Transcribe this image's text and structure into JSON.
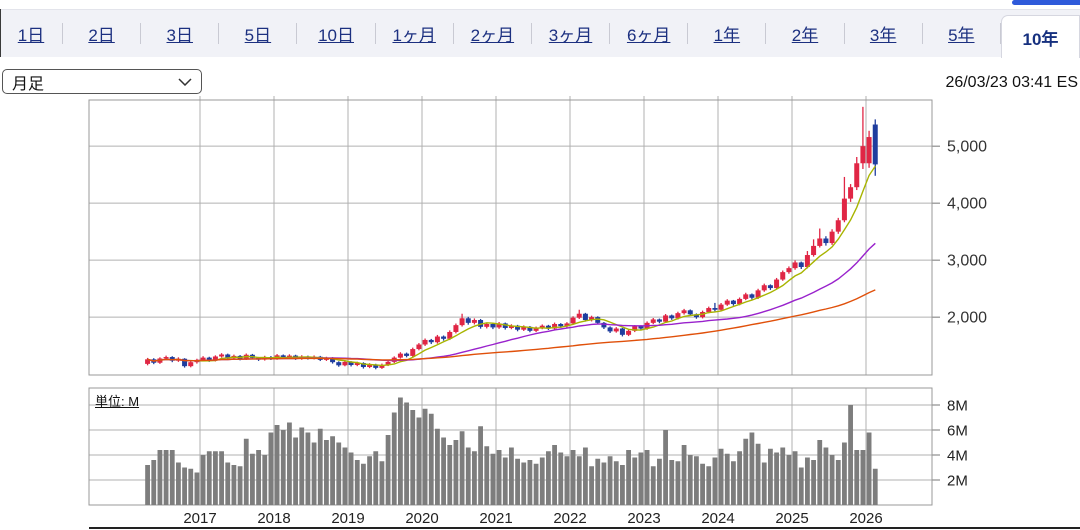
{
  "tabs": {
    "items": [
      {
        "id": "1d",
        "label": "1日"
      },
      {
        "id": "2d",
        "label": "2日"
      },
      {
        "id": "3d",
        "label": "3日"
      },
      {
        "id": "5d",
        "label": "5日"
      },
      {
        "id": "10d",
        "label": "10日"
      },
      {
        "id": "1mo",
        "label": "1ヶ月"
      },
      {
        "id": "2mo",
        "label": "2ヶ月"
      },
      {
        "id": "3mo",
        "label": "3ヶ月"
      },
      {
        "id": "6mo",
        "label": "6ヶ月"
      },
      {
        "id": "1y",
        "label": "1年"
      },
      {
        "id": "2y",
        "label": "2年"
      },
      {
        "id": "3y",
        "label": "3年"
      },
      {
        "id": "5y",
        "label": "5年"
      },
      {
        "id": "10y",
        "label": "10年"
      }
    ],
    "selected_id": "10y"
  },
  "controls": {
    "interval_value": "月足",
    "timestamp": "26/03/23 03:41 ES"
  },
  "chart_data": {
    "type": "candlestick_with_volume",
    "interval": "month",
    "start_month": "2016-04",
    "unit_label": "単位: M",
    "x_year_labels": [
      "2017",
      "2018",
      "2019",
      "2020",
      "2021",
      "2022",
      "2023",
      "2024",
      "2025",
      "2026"
    ],
    "price_axis": {
      "ticks": [
        2000,
        3000,
        4000,
        5000
      ],
      "tick_labels": [
        "2,000",
        "3,000",
        "4,000",
        "5,000"
      ],
      "range": [
        985,
        5810
      ]
    },
    "volume_axis": {
      "ticks": [
        2,
        4,
        6,
        8
      ],
      "tick_labels": [
        "2M",
        "4M",
        "6M",
        "8M"
      ],
      "range": [
        0,
        9.36
      ]
    },
    "ma_periods": [
      6,
      24,
      60
    ],
    "ma_colors": {
      "short": "#a8b400",
      "mid": "#9922cc",
      "long": "#e0500a"
    },
    "candle_colors": {
      "up": "#e02645",
      "down": "#1f3d9e"
    },
    "volume_color": "#7d7d7d",
    "grid_color": "#b0b0b0",
    "border_color": "#999999",
    "ohlcv": [
      [
        1180,
        1285,
        1155,
        1260,
        3.2
      ],
      [
        1260,
        1280,
        1175,
        1200,
        3.6
      ],
      [
        1200,
        1295,
        1180,
        1275,
        4.4
      ],
      [
        1275,
        1325,
        1255,
        1300,
        4.4
      ],
      [
        1300,
        1315,
        1210,
        1235,
        4.4
      ],
      [
        1235,
        1295,
        1215,
        1270,
        3.4
      ],
      [
        1270,
        1280,
        1115,
        1140,
        3.0
      ],
      [
        1140,
        1235,
        1120,
        1210,
        2.9
      ],
      [
        1210,
        1270,
        1185,
        1250,
        2.6
      ],
      [
        1250,
        1315,
        1230,
        1290,
        4.0
      ],
      [
        1290,
        1305,
        1215,
        1240,
        4.3
      ],
      [
        1240,
        1330,
        1222,
        1310,
        4.3
      ],
      [
        1310,
        1368,
        1290,
        1345,
        4.3
      ],
      [
        1345,
        1360,
        1258,
        1280,
        3.4
      ],
      [
        1280,
        1342,
        1262,
        1320,
        3.2
      ],
      [
        1320,
        1335,
        1242,
        1265,
        3.1
      ],
      [
        1265,
        1362,
        1248,
        1340,
        5.3
      ],
      [
        1340,
        1355,
        1262,
        1285,
        4.1
      ],
      [
        1285,
        1302,
        1232,
        1255,
        4.4
      ],
      [
        1255,
        1322,
        1238,
        1300,
        4.0
      ],
      [
        1300,
        1318,
        1248,
        1270,
        5.8
      ],
      [
        1270,
        1352,
        1252,
        1330,
        6.4
      ],
      [
        1330,
        1345,
        1265,
        1290,
        6.0
      ],
      [
        1290,
        1348,
        1272,
        1325,
        6.6
      ],
      [
        1325,
        1340,
        1250,
        1270,
        5.4
      ],
      [
        1270,
        1332,
        1252,
        1310,
        6.2
      ],
      [
        1310,
        1325,
        1255,
        1275,
        5.8
      ],
      [
        1275,
        1328,
        1258,
        1305,
        5.0
      ],
      [
        1305,
        1320,
        1230,
        1250,
        6.1
      ],
      [
        1250,
        1305,
        1232,
        1285,
        5.2
      ],
      [
        1285,
        1298,
        1185,
        1210,
        5.5
      ],
      [
        1210,
        1225,
        1130,
        1155,
        5.0
      ],
      [
        1155,
        1238,
        1138,
        1215,
        4.6
      ],
      [
        1215,
        1228,
        1135,
        1160,
        4.2
      ],
      [
        1160,
        1218,
        1140,
        1195,
        3.6
      ],
      [
        1195,
        1208,
        1098,
        1125,
        3.3
      ],
      [
        1125,
        1192,
        1105,
        1170,
        3.9
      ],
      [
        1170,
        1182,
        1085,
        1110,
        4.3
      ],
      [
        1110,
        1185,
        1092,
        1160,
        3.5
      ],
      [
        1160,
        1240,
        1142,
        1215,
        5.6
      ],
      [
        1215,
        1312,
        1195,
        1290,
        7.4
      ],
      [
        1290,
        1385,
        1272,
        1360,
        8.6
      ],
      [
        1360,
        1378,
        1295,
        1320,
        8.2
      ],
      [
        1320,
        1465,
        1302,
        1440,
        7.6
      ],
      [
        1440,
        1545,
        1418,
        1520,
        7.0
      ],
      [
        1520,
        1625,
        1495,
        1600,
        7.7
      ],
      [
        1600,
        1618,
        1528,
        1560,
        7.3
      ],
      [
        1560,
        1688,
        1535,
        1660,
        6.1
      ],
      [
        1660,
        1678,
        1588,
        1620,
        5.4
      ],
      [
        1620,
        1768,
        1598,
        1740,
        4.8
      ],
      [
        1740,
        1888,
        1715,
        1860,
        5.2
      ],
      [
        1860,
        2060,
        1835,
        1980,
        5.9
      ],
      [
        1980,
        2005,
        1868,
        1900,
        4.6
      ],
      [
        1900,
        1978,
        1872,
        1950,
        4.3
      ],
      [
        1950,
        1968,
        1798,
        1830,
        6.3
      ],
      [
        1830,
        1905,
        1802,
        1880,
        4.7
      ],
      [
        1880,
        1898,
        1790,
        1820,
        4.1
      ],
      [
        1820,
        1915,
        1795,
        1890,
        4.4
      ],
      [
        1890,
        1905,
        1782,
        1810,
        3.8
      ],
      [
        1810,
        1875,
        1788,
        1850,
        4.6
      ],
      [
        1850,
        1865,
        1752,
        1780,
        3.7
      ],
      [
        1780,
        1855,
        1758,
        1830,
        3.4
      ],
      [
        1830,
        1845,
        1735,
        1760,
        3.6
      ],
      [
        1760,
        1835,
        1738,
        1810,
        3.3
      ],
      [
        1810,
        1872,
        1788,
        1850,
        3.8
      ],
      [
        1850,
        1865,
        1775,
        1800,
        4.3
      ],
      [
        1800,
        1905,
        1782,
        1880,
        4.8
      ],
      [
        1880,
        1895,
        1812,
        1840,
        4.2
      ],
      [
        1840,
        1912,
        1818,
        1890,
        3.9
      ],
      [
        1890,
        2015,
        1868,
        1990,
        4.4
      ],
      [
        1990,
        2130,
        1968,
        2060,
        3.9
      ],
      [
        2060,
        2075,
        1922,
        1950,
        4.6
      ],
      [
        1950,
        2025,
        1925,
        2000,
        3.1
      ],
      [
        2000,
        2015,
        1872,
        1900,
        3.7
      ],
      [
        1900,
        1915,
        1792,
        1820,
        3.4
      ],
      [
        1820,
        1838,
        1722,
        1750,
        3.9
      ],
      [
        1750,
        1825,
        1728,
        1800,
        3.5
      ],
      [
        1800,
        1812,
        1662,
        1690,
        3.2
      ],
      [
        1690,
        1785,
        1668,
        1760,
        4.4
      ],
      [
        1760,
        1862,
        1738,
        1840,
        3.8
      ],
      [
        1840,
        1858,
        1772,
        1800,
        4.2
      ],
      [
        1800,
        1925,
        1778,
        1900,
        4.4
      ],
      [
        1900,
        1985,
        1878,
        1960,
        3.1
      ],
      [
        1960,
        1975,
        1892,
        1920,
        3.7
      ],
      [
        1920,
        2055,
        1898,
        2030,
        6.0
      ],
      [
        2030,
        2045,
        1952,
        1980,
        3.6
      ],
      [
        1980,
        2095,
        1958,
        2070,
        3.5
      ],
      [
        2070,
        2145,
        2045,
        2120,
        4.8
      ],
      [
        2120,
        2135,
        2022,
        2050,
        4.0
      ],
      [
        2050,
        2065,
        1972,
        2000,
        3.9
      ],
      [
        2000,
        2115,
        1978,
        2090,
        3.3
      ],
      [
        2090,
        2185,
        2068,
        2160,
        3.1
      ],
      [
        2160,
        2250,
        2102,
        2130,
        3.8
      ],
      [
        2130,
        2248,
        2105,
        2220,
        4.5
      ],
      [
        2220,
        2315,
        2198,
        2290,
        4.1
      ],
      [
        2290,
        2302,
        2202,
        2230,
        3.5
      ],
      [
        2230,
        2345,
        2208,
        2320,
        4.3
      ],
      [
        2320,
        2428,
        2298,
        2400,
        5.3
      ],
      [
        2400,
        2415,
        2312,
        2340,
        5.8
      ],
      [
        2340,
        2498,
        2318,
        2470,
        4.9
      ],
      [
        2470,
        2588,
        2445,
        2560,
        3.4
      ],
      [
        2560,
        2575,
        2478,
        2510,
        4.5
      ],
      [
        2510,
        2688,
        2488,
        2660,
        4.2
      ],
      [
        2660,
        2818,
        2638,
        2790,
        4.6
      ],
      [
        2790,
        2890,
        2762,
        2860,
        4.0
      ],
      [
        2860,
        2995,
        2832,
        2960,
        4.3
      ],
      [
        2960,
        2975,
        2845,
        2880,
        3.0
      ],
      [
        2880,
        3160,
        2855,
        3090,
        3.8
      ],
      [
        3090,
        3365,
        3062,
        3250,
        3.6
      ],
      [
        3250,
        3555,
        3222,
        3380,
        5.2
      ],
      [
        3380,
        3420,
        3255,
        3300,
        4.6
      ],
      [
        3300,
        3542,
        3268,
        3500,
        4.0
      ],
      [
        3500,
        3742,
        3462,
        3700,
        3.6
      ],
      [
        3700,
        4460,
        3665,
        4080,
        5.0
      ],
      [
        4080,
        4335,
        4022,
        4280,
        8.0
      ],
      [
        4280,
        4810,
        4230,
        4700,
        4.4
      ],
      [
        4700,
        5690,
        4600,
        5000,
        4.4
      ],
      [
        4700,
        5270,
        4620,
        5160,
        5.8
      ],
      [
        5380,
        5470,
        4480,
        4680,
        2.9
      ]
    ]
  }
}
